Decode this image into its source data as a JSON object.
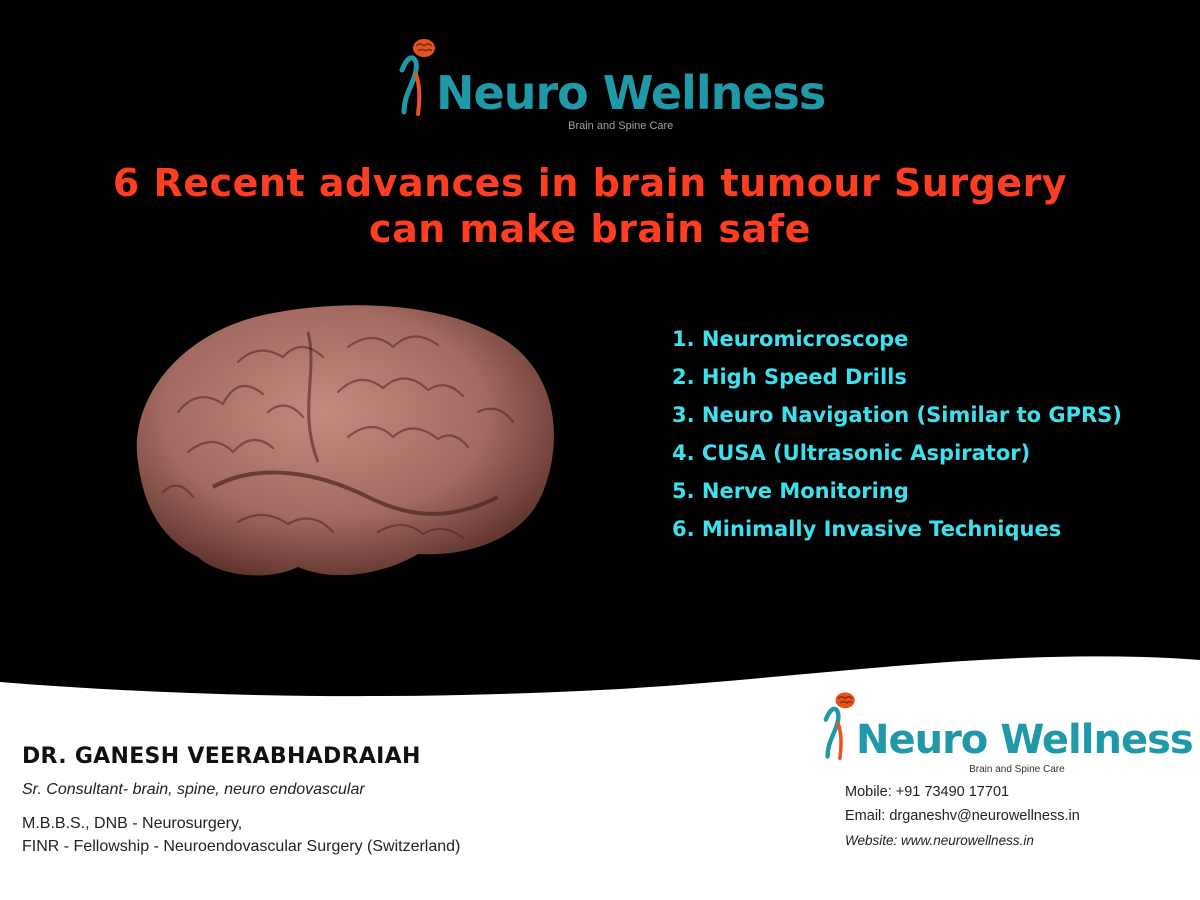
{
  "brand": {
    "name_part1": "Neuro",
    "name_part2": "Wellness",
    "tagline": "Brain and Spine Care",
    "colors": {
      "teal": "#1f98a8",
      "accent": "#ff3d21",
      "cyan": "#3fe0ee",
      "brain": "#a87066"
    }
  },
  "headline": {
    "line1": "6 Recent advances in brain tumour Surgery",
    "line2": "can make brain safe"
  },
  "advances": [
    "1. Neuromicroscope",
    "2. High Speed Drills",
    "3. Neuro Navigation (Similar to GPRS)",
    "4. CUSA (Ultrasonic Aspirator)",
    "5. Nerve Monitoring",
    "6. Minimally Invasive Techniques"
  ],
  "doctor": {
    "name": "DR. GANESH VEERABHADRAIAH",
    "role": "Sr. Consultant- brain, spine, neuro endovascular",
    "qualification_1": "M.B.B.S., DNB - Neurosurgery,",
    "qualification_2": "FINR - Fellowship - Neuroendovascular Surgery (Switzerland)"
  },
  "contact": {
    "mobile": "Mobile: +91 73490 17701",
    "email": "Email: drganeshv@neurowellness.in",
    "website": "Website: www.neurowellness.in"
  },
  "icons": [
    "brain-logo-icon",
    "brain-illustration"
  ]
}
